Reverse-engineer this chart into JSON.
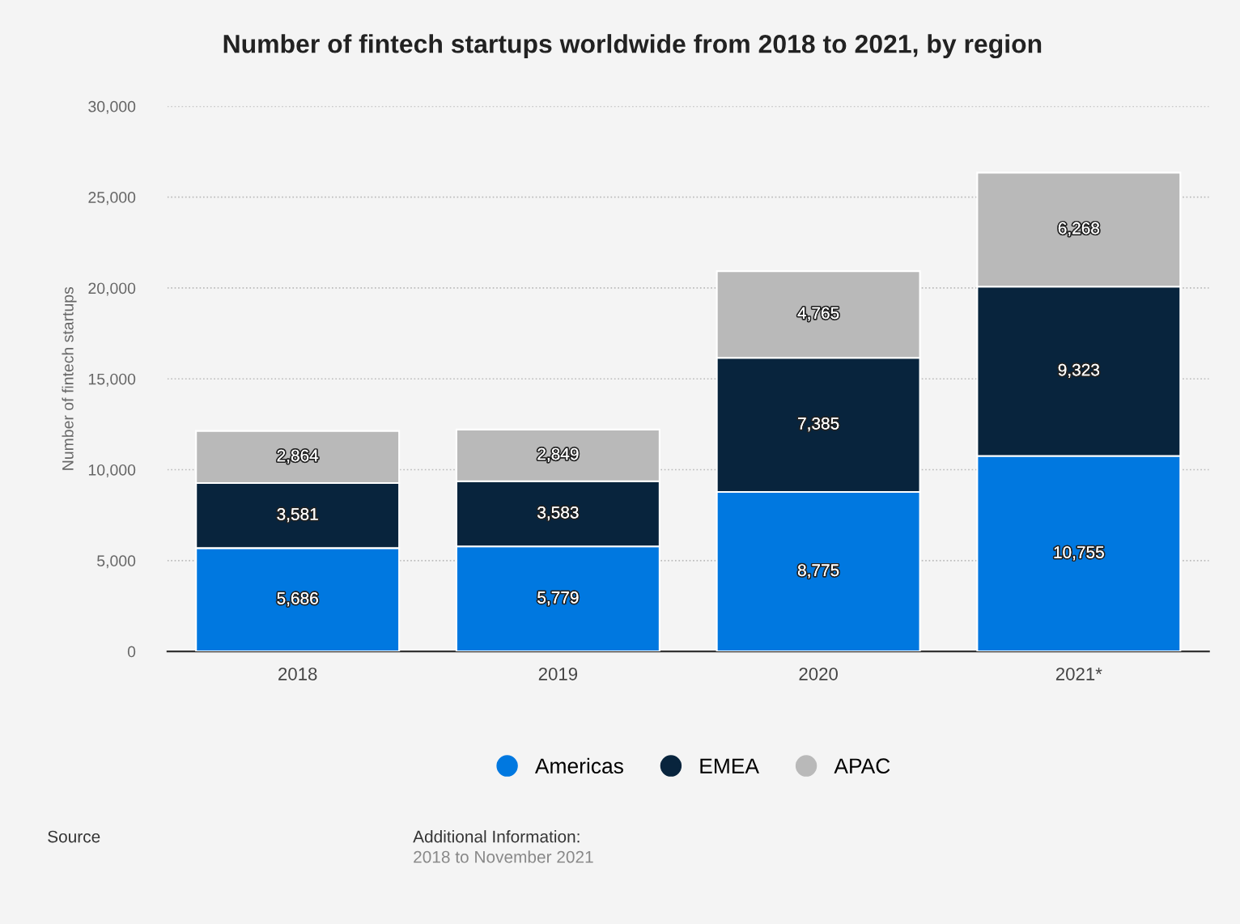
{
  "chart_data": {
    "type": "bar",
    "title": "Number of fintech startups worldwide from 2018 to 2021, by region",
    "ylabel": "Number of fintech startups",
    "categories": [
      "2018",
      "2019",
      "2020",
      "2021*"
    ],
    "series": [
      {
        "name": "Americas",
        "color": "#0078e0",
        "values": [
          5686,
          5779,
          8775,
          10755
        ],
        "value_labels": [
          "5,686",
          "5,779",
          "8,775",
          "10,755"
        ]
      },
      {
        "name": "EMEA",
        "color": "#08243d",
        "values": [
          3581,
          3583,
          7385,
          9323
        ],
        "value_labels": [
          "3,581",
          "3,583",
          "7,385",
          "9,323"
        ]
      },
      {
        "name": "APAC",
        "color": "#b9b9b9",
        "values": [
          2864,
          2849,
          4765,
          6268
        ],
        "value_labels": [
          "2,864",
          "2,849",
          "4,765",
          "6,268"
        ]
      }
    ],
    "stacked": true,
    "ylim": [
      0,
      30000
    ],
    "yticks": [
      {
        "value": 0,
        "label": "0"
      },
      {
        "value": 5000,
        "label": "5,000"
      },
      {
        "value": 10000,
        "label": "10,000"
      },
      {
        "value": 15000,
        "label": "15,000"
      },
      {
        "value": 20000,
        "label": "20,000"
      },
      {
        "value": 25000,
        "label": "25,000"
      },
      {
        "value": 30000,
        "label": "30,000"
      }
    ],
    "grid": "y",
    "legend": "bottom",
    "annotations": [
      "Source",
      "Additional Information:",
      "2018 to November 2021"
    ]
  }
}
